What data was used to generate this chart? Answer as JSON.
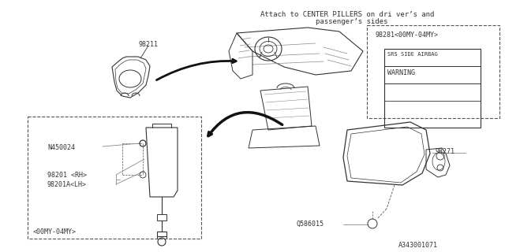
{
  "background_color": "#ffffff",
  "line_color": "#333333",
  "gray_color": "#888888",
  "dashed_color": "#555555",
  "diagram_id": "A343001071",
  "fig_width": 6.4,
  "fig_height": 3.2,
  "top_text_line1": "Attach to CENTER PILLERS on dri ver’s and",
  "top_text_line2": "passenger’s sides",
  "label_98211": "98211",
  "label_98281": "98281<00MY-04MY>",
  "label_98271": "98271",
  "label_N450024": "N450024",
  "label_98201RH": "98201 <RH>",
  "label_98201ALH": "98201A<LH>",
  "label_00MY": "<00MY-04MY>",
  "label_Q586015": "Q586015",
  "warn_line1": "SRS SIDE AIRBAG",
  "warn_line2": "WARNING"
}
